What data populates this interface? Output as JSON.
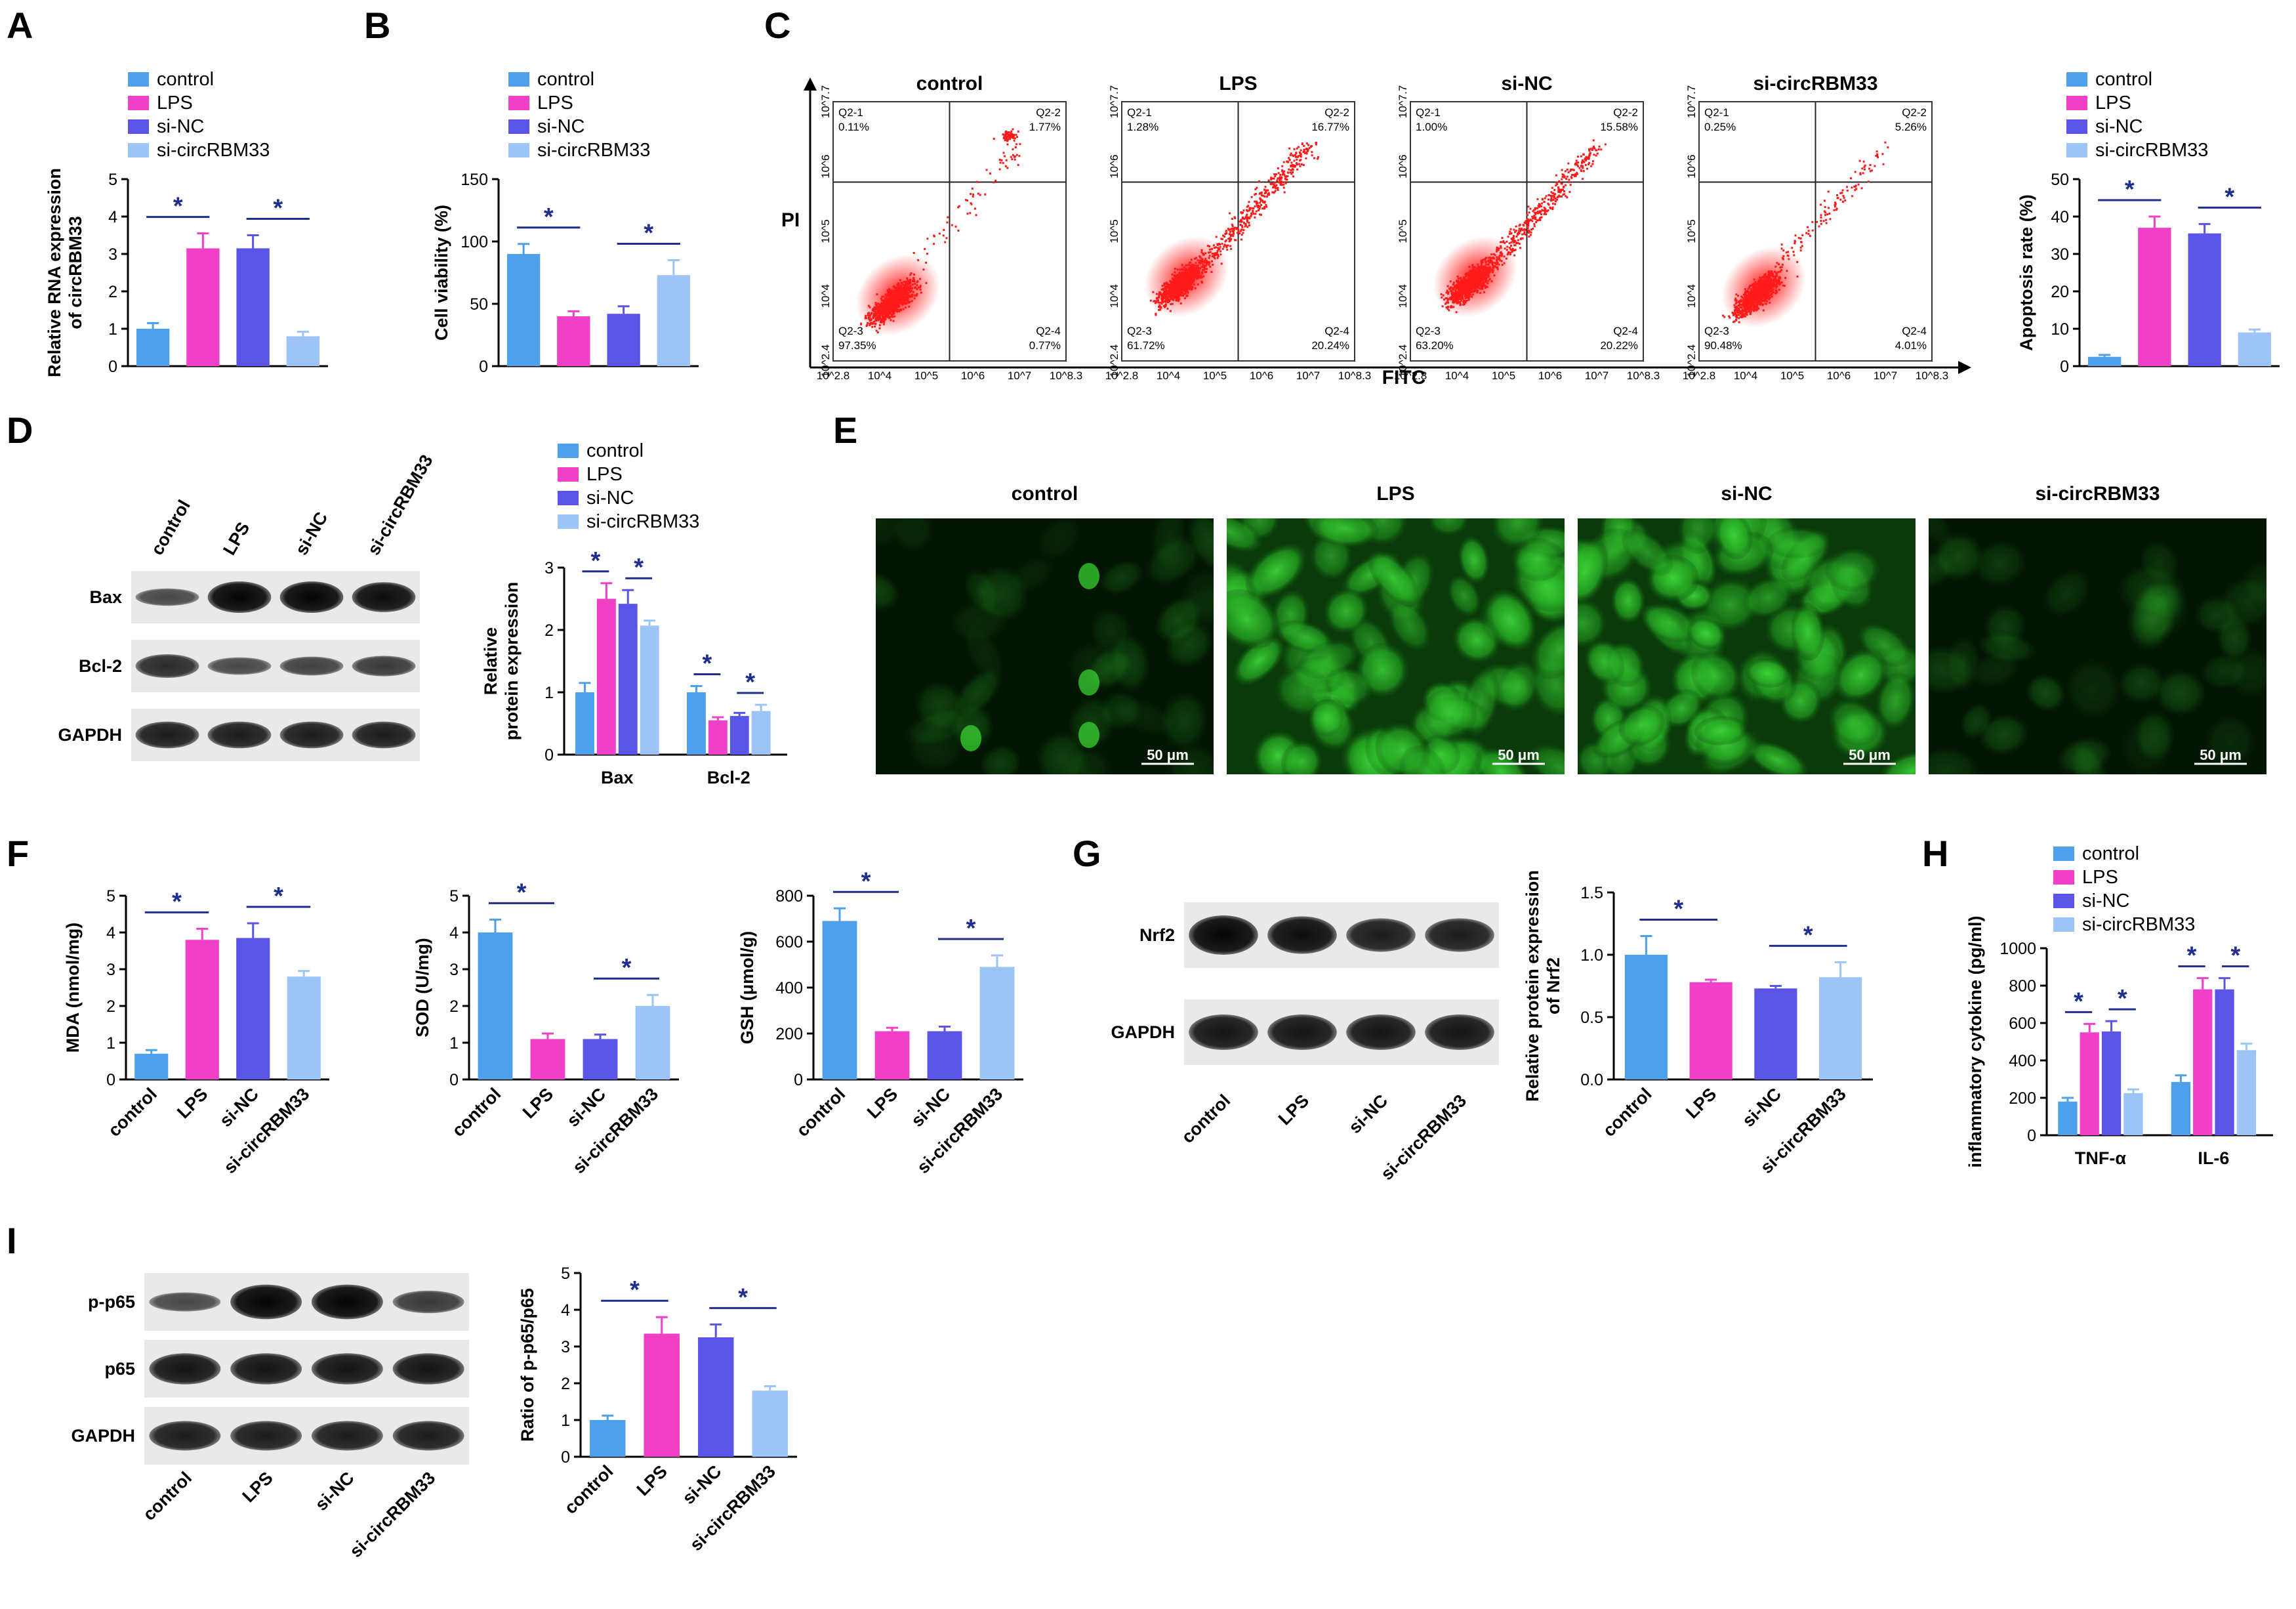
{
  "panel_labels": [
    "A",
    "B",
    "C",
    "D",
    "E",
    "F",
    "G",
    "H",
    "I"
  ],
  "colors": {
    "control": "#4ea0ea",
    "LPS": "#f040c8",
    "si-NC": "#5a55e6",
    "si-circRBM33": "#9cc4f6",
    "sig": "#1f2e8c"
  },
  "legend": [
    "control",
    "LPS",
    "si-NC",
    "si-circRBM33"
  ],
  "significance_mark": "*",
  "chart_data": [
    {
      "id": "A",
      "type": "bar",
      "categories": [
        "control",
        "LPS",
        "si-NC",
        "si-circRBM33"
      ],
      "values": [
        1.0,
        3.15,
        3.15,
        0.8
      ],
      "errors": [
        0.15,
        0.4,
        0.35,
        0.12
      ],
      "ylabel": "Relative RNA expression of circRBM33",
      "ylim": [
        0,
        5
      ],
      "yticks": [
        0,
        1,
        2,
        3,
        4,
        5
      ],
      "show_xlabels": false,
      "legend": "top"
    },
    {
      "id": "B",
      "type": "bar",
      "categories": [
        "control",
        "LPS",
        "si-NC",
        "si-circRBM33"
      ],
      "values": [
        90,
        40,
        42,
        73
      ],
      "errors": [
        8,
        4,
        6,
        12
      ],
      "ylabel": "Cell viability (%)",
      "ylim": [
        0,
        150
      ],
      "yticks": [
        0,
        50,
        100,
        150
      ],
      "show_xlabels": false,
      "legend": "top"
    },
    {
      "id": "C-bar",
      "type": "bar",
      "categories": [
        "control",
        "LPS",
        "si-NC",
        "si-circRBM33"
      ],
      "values": [
        2.5,
        37,
        35.5,
        9
      ],
      "errors": [
        0.5,
        3,
        2.5,
        0.8
      ],
      "ylabel": "Apoptosis rate (%)",
      "ylim": [
        0,
        50
      ],
      "yticks": [
        0,
        10,
        20,
        30,
        40,
        50
      ],
      "show_xlabels": false,
      "legend": "top"
    },
    {
      "id": "C-flow",
      "type": "scatter",
      "xlabel": "FITC",
      "ylabel": "PI",
      "x_ticks": [
        "10^2.8",
        "10^4",
        "10^5",
        "10^6",
        "10^7",
        "10^8.3"
      ],
      "y_ticks": [
        "10^2.4",
        "10^4",
        "10^5",
        "10^6",
        "10^7.7"
      ],
      "plots": [
        {
          "title": "control",
          "quadrants": {
            "Q2-1": "0.11%",
            "Q2-2": "1.77%",
            "Q2-3": "97.35%",
            "Q2-4": "0.77%"
          }
        },
        {
          "title": "LPS",
          "quadrants": {
            "Q2-1": "1.28%",
            "Q2-2": "16.77%",
            "Q2-3": "61.72%",
            "Q2-4": "20.24%"
          }
        },
        {
          "title": "si-NC",
          "quadrants": {
            "Q2-1": "1.00%",
            "Q2-2": "15.58%",
            "Q2-3": "63.20%",
            "Q2-4": "20.22%"
          }
        },
        {
          "title": "si-circRBM33",
          "quadrants": {
            "Q2-1": "0.25%",
            "Q2-2": "5.26%",
            "Q2-3": "90.48%",
            "Q2-4": "4.01%"
          }
        }
      ]
    },
    {
      "id": "D",
      "type": "bar",
      "groups": [
        "Bax",
        "Bcl-2"
      ],
      "series": [
        {
          "name": "control",
          "values": [
            1.0,
            1.0
          ],
          "errors": [
            0.15,
            0.1
          ]
        },
        {
          "name": "LPS",
          "values": [
            2.5,
            0.55
          ],
          "errors": [
            0.25,
            0.05
          ]
        },
        {
          "name": "si-NC",
          "values": [
            2.42,
            0.62
          ],
          "errors": [
            0.22,
            0.05
          ]
        },
        {
          "name": "si-circRBM33",
          "values": [
            2.07,
            0.7
          ],
          "errors": [
            0.08,
            0.1
          ]
        }
      ],
      "ylabel": "Relative protein expression",
      "ylim": [
        0,
        3
      ],
      "yticks": [
        0,
        1,
        2,
        3
      ],
      "legend": "top"
    },
    {
      "id": "F-MDA",
      "type": "bar",
      "categories": [
        "control",
        "LPS",
        "si-NC",
        "si-circRBM33"
      ],
      "values": [
        0.7,
        3.8,
        3.85,
        2.8
      ],
      "errors": [
        0.1,
        0.3,
        0.4,
        0.15
      ],
      "ylabel": "MDA (nmol/mg)",
      "ylim": [
        0,
        5
      ],
      "yticks": [
        0,
        1,
        2,
        3,
        4,
        5
      ],
      "show_xlabels": true
    },
    {
      "id": "F-SOD",
      "type": "bar",
      "categories": [
        "control",
        "LPS",
        "si-NC",
        "si-circRBM33"
      ],
      "values": [
        4.0,
        1.1,
        1.1,
        2.0
      ],
      "errors": [
        0.35,
        0.15,
        0.12,
        0.3
      ],
      "ylabel": "SOD (U/mg)",
      "ylim": [
        0,
        5
      ],
      "yticks": [
        0,
        1,
        2,
        3,
        4,
        5
      ],
      "show_xlabels": true
    },
    {
      "id": "F-GSH",
      "type": "bar",
      "categories": [
        "control",
        "LPS",
        "si-NC",
        "si-circRBM33"
      ],
      "values": [
        690,
        210,
        210,
        490
      ],
      "errors": [
        55,
        15,
        20,
        50
      ],
      "ylabel": "GSH (μmol/g)",
      "ylim": [
        0,
        800
      ],
      "yticks": [
        0,
        200,
        400,
        600,
        800
      ],
      "show_xlabels": true
    },
    {
      "id": "G",
      "type": "bar",
      "categories": [
        "control",
        "LPS",
        "si-NC",
        "si-circRBM33"
      ],
      "values": [
        1.0,
        0.78,
        0.73,
        0.82
      ],
      "errors": [
        0.15,
        0.02,
        0.02,
        0.12
      ],
      "ylabel": "Relative protein expression of Nrf2",
      "ylim": [
        0,
        1.5
      ],
      "yticks": [
        0.0,
        0.5,
        1.0,
        1.5
      ],
      "ytick_labels": [
        "0.0",
        "0.5",
        "1.0",
        "1.5"
      ],
      "show_xlabels": true
    },
    {
      "id": "H",
      "type": "bar",
      "groups": [
        "TNF-α",
        "IL-6"
      ],
      "series": [
        {
          "name": "control",
          "values": [
            180,
            285
          ],
          "errors": [
            20,
            35
          ]
        },
        {
          "name": "LPS",
          "values": [
            550,
            780
          ],
          "errors": [
            45,
            60
          ]
        },
        {
          "name": "si-NC",
          "values": [
            555,
            780
          ],
          "errors": [
            55,
            60
          ]
        },
        {
          "name": "si-circRBM33",
          "values": [
            225,
            455
          ],
          "errors": [
            20,
            35
          ]
        }
      ],
      "ylabel": "inflammatory cytokine (pg/ml)",
      "ylim": [
        0,
        1000
      ],
      "yticks": [
        0,
        200,
        400,
        600,
        800,
        1000
      ],
      "legend": "top"
    },
    {
      "id": "I",
      "type": "bar",
      "categories": [
        "control",
        "LPS",
        "si-NC",
        "si-circRBM33"
      ],
      "values": [
        1.0,
        3.35,
        3.25,
        1.8
      ],
      "errors": [
        0.12,
        0.45,
        0.35,
        0.12
      ],
      "ylabel": "Ratio of p-p65/p65",
      "ylim": [
        0,
        5
      ],
      "yticks": [
        0,
        1,
        2,
        3,
        4,
        5
      ],
      "show_xlabels": true
    }
  ],
  "blots": {
    "D": {
      "lanes": [
        "control",
        "LPS",
        "si-NC",
        "si-circRBM33"
      ],
      "rows": [
        "Bax",
        "Bcl-2",
        "GAPDH"
      ]
    },
    "G": {
      "lanes": [
        "control",
        "LPS",
        "si-NC",
        "si-circRBM33"
      ],
      "rows": [
        "Nrf2",
        "GAPDH"
      ]
    },
    "I": {
      "lanes": [
        "control",
        "LPS",
        "si-NC",
        "si-circRBM33"
      ],
      "rows": [
        "p-p65",
        "p65",
        "GAPDH"
      ]
    }
  },
  "microscopy": {
    "titles": [
      "control",
      "LPS",
      "si-NC",
      "si-circRBM33"
    ],
    "scale_bar": "50 μm"
  }
}
